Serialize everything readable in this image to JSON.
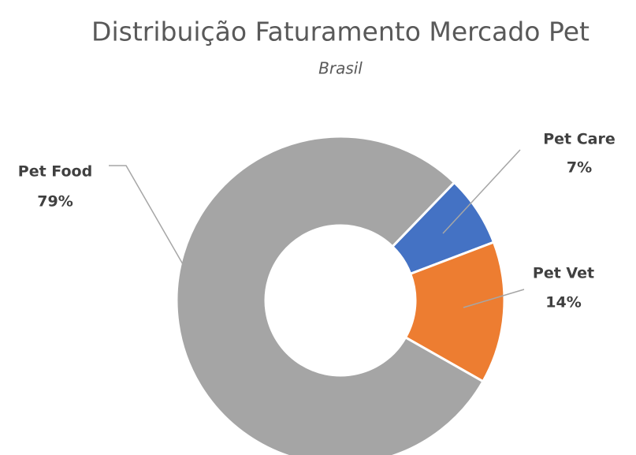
{
  "chart_data": {
    "type": "donut",
    "title": "Distribuição Faturamento Mercado Pet",
    "subtitle": "Brasil",
    "categories": [
      "Pet Care",
      "Pet Vet",
      "Pet Food"
    ],
    "values": [
      7,
      14,
      79
    ],
    "value_labels": [
      "7%",
      "14%",
      "79%"
    ],
    "colors": [
      "#4472c4",
      "#ed7d31",
      "#a5a5a5"
    ]
  }
}
